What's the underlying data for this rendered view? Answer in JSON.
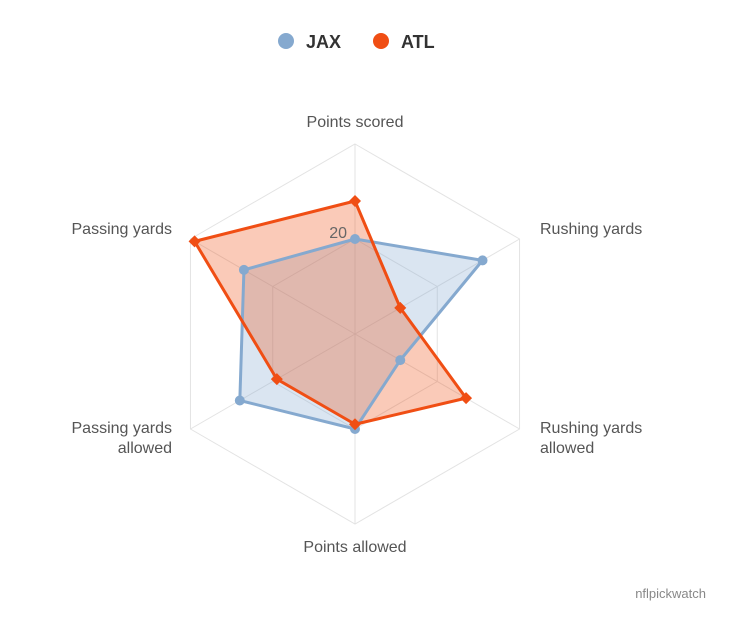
{
  "chart_data": {
    "type": "radar",
    "axes": [
      "Points scored",
      "Rushing yards",
      "Rushing yards allowed",
      "Points allowed",
      "Passing yards allowed",
      "Passing yards"
    ],
    "axis_label_lines": [
      [
        "Points scored"
      ],
      [
        "Rushing yards"
      ],
      [
        "Rushing yards",
        "allowed"
      ],
      [
        "Points allowed"
      ],
      [
        "Passing yards",
        "allowed"
      ],
      [
        "Passing yards"
      ]
    ],
    "ticks": [
      {
        "value": 20,
        "label": "20"
      }
    ],
    "range": [
      0,
      40
    ],
    "series": [
      {
        "name": "JAX",
        "color": "#85a9cf",
        "marker": "circle",
        "values": [
          20,
          31,
          11,
          20,
          28,
          27
        ]
      },
      {
        "name": "ATL",
        "color": "#f04e14",
        "marker": "diamond",
        "values": [
          28,
          11,
          27,
          19,
          19,
          39
        ]
      }
    ],
    "legend_position": "top-center",
    "grid": true
  },
  "credit": "nflpickwatch"
}
